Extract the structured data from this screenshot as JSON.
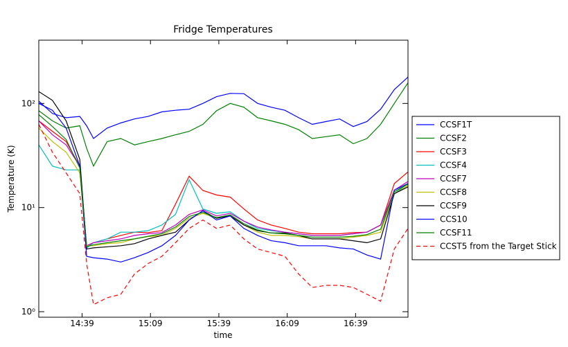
{
  "chart_data": {
    "type": "line",
    "title": "Fridge Temperatures",
    "x_label": "time",
    "y_label": "Temperature (K)",
    "log_y": true,
    "legend": "right",
    "x": [
      860,
      866,
      872,
      878,
      881,
      884,
      890,
      896,
      902,
      908,
      914,
      920,
      926,
      932,
      938,
      944,
      950,
      956,
      962,
      968,
      974,
      980,
      986,
      992,
      998,
      1004,
      1010,
      1016,
      1022
    ],
    "xlim": [
      860,
      1022
    ],
    "xticks": [
      {
        "value": 879,
        "label": "14:39"
      },
      {
        "value": 909,
        "label": "15:09"
      },
      {
        "value": 939,
        "label": "15:39"
      },
      {
        "value": 969,
        "label": "16:09"
      },
      {
        "value": 999,
        "label": "16:39"
      }
    ],
    "ylim": [
      0.885,
      405
    ],
    "yticks": [
      {
        "value": 1,
        "label": "10⁰"
      },
      {
        "value": 10,
        "label": "10¹"
      },
      {
        "value": 100,
        "label": "10²"
      }
    ],
    "series": [
      {
        "name": "CCSF1T",
        "color": "#0000ff",
        "linestyle": "solid",
        "values": [
          105,
          80,
          73,
          75,
          61,
          46,
          58,
          65,
          71,
          75,
          83,
          86,
          88,
          100,
          116,
          125,
          124,
          100,
          92,
          86,
          73,
          63,
          67,
          71,
          60,
          67,
          88,
          136,
          179
        ]
      },
      {
        "name": "CCSF2",
        "color": "#008000",
        "linestyle": "solid",
        "values": [
          85,
          68,
          58,
          61,
          37,
          25,
          43,
          46,
          40,
          43,
          46,
          50,
          54,
          63,
          85,
          100,
          92,
          73,
          68,
          63,
          56,
          46,
          48,
          50,
          41,
          46,
          63,
          100,
          158
        ]
      },
      {
        "name": "CCSF3",
        "color": "#ff0000",
        "linestyle": "solid",
        "values": [
          68,
          54,
          43,
          25,
          4.3,
          4.6,
          5.0,
          5.4,
          5.8,
          5.75,
          6.0,
          10.8,
          20,
          14.6,
          13.2,
          12.6,
          9.7,
          7.6,
          6.8,
          6.3,
          5.8,
          5.6,
          5.6,
          5.6,
          5.75,
          5.8,
          6.8,
          17,
          22
        ]
      },
      {
        "name": "CCSF4",
        "color": "#00bfbf",
        "linestyle": "solid",
        "values": [
          40,
          25,
          23,
          23,
          4.1,
          4.6,
          5.0,
          5.8,
          5.8,
          6.0,
          6.8,
          8.6,
          18.5,
          9.7,
          8.8,
          9.1,
          7.4,
          6.3,
          6.0,
          5.8,
          5.6,
          5.4,
          5.4,
          5.4,
          5.6,
          5.8,
          6.8,
          13.6,
          17
        ]
      },
      {
        "name": "CCSF7",
        "color": "#bf00bf",
        "linestyle": "solid",
        "values": [
          68,
          50,
          40,
          25,
          4.3,
          4.6,
          4.8,
          5.0,
          5.4,
          5.6,
          5.75,
          6.8,
          8.6,
          9.5,
          8.3,
          8.8,
          7.4,
          6.5,
          6.1,
          5.8,
          5.6,
          5.4,
          5.4,
          5.4,
          5.6,
          5.8,
          6.8,
          14.7,
          17.8
        ]
      },
      {
        "name": "CCSF8",
        "color": "#bfbf00",
        "linestyle": "solid",
        "values": [
          58,
          43,
          34,
          21.5,
          4.3,
          4.3,
          4.5,
          4.6,
          5.0,
          5.25,
          5.4,
          6.3,
          7.9,
          8.8,
          7.9,
          8.3,
          6.8,
          5.8,
          5.4,
          5.4,
          5.25,
          5.0,
          5.0,
          5.0,
          5.2,
          5.4,
          5.8,
          13.6,
          16.3
        ]
      },
      {
        "name": "CCSF9",
        "color": "#000000",
        "linestyle": "solid",
        "values": [
          130,
          107,
          68,
          29,
          4.0,
          4.1,
          4.2,
          4.3,
          4.5,
          5.0,
          5.4,
          5.8,
          7.6,
          9.3,
          7.9,
          8.3,
          6.8,
          6.0,
          5.7,
          5.7,
          5.4,
          5.0,
          5.0,
          5.0,
          4.8,
          4.6,
          5.0,
          13.6,
          15.8
        ]
      },
      {
        "name": "CCS10",
        "color": "#0000ff",
        "linestyle": "solid",
        "values": [
          100,
          86,
          58,
          25,
          3.4,
          3.3,
          3.2,
          3.0,
          3.3,
          3.7,
          4.3,
          5.4,
          7.6,
          9.3,
          7.6,
          8.3,
          6.3,
          5.4,
          4.8,
          4.6,
          4.3,
          4.3,
          4.3,
          4.1,
          4.0,
          3.5,
          3.2,
          14.7,
          17
        ]
      },
      {
        "name": "CCSF11",
        "color": "#008000",
        "linestyle": "solid",
        "values": [
          78,
          60,
          45,
          24,
          4.2,
          4.4,
          4.6,
          4.8,
          5.0,
          5.3,
          5.6,
          6.5,
          8.2,
          9.0,
          8.0,
          8.5,
          7.0,
          6.1,
          5.7,
          5.6,
          5.4,
          5.2,
          5.2,
          5.2,
          5.3,
          5.5,
          6.2,
          14.2,
          16.8
        ]
      },
      {
        "name": "CCST5 from the Target Stick",
        "color": "#ff0000",
        "linestyle": "dashed",
        "values": [
          63,
          34,
          21.5,
          13.6,
          2.9,
          1.17,
          1.36,
          1.47,
          2.3,
          2.9,
          3.4,
          4.6,
          6.3,
          7.6,
          6.3,
          6.8,
          5.0,
          4.0,
          3.7,
          3.4,
          2.3,
          1.71,
          1.79,
          1.79,
          1.71,
          1.47,
          1.26,
          4.0,
          6.3
        ]
      }
    ]
  }
}
